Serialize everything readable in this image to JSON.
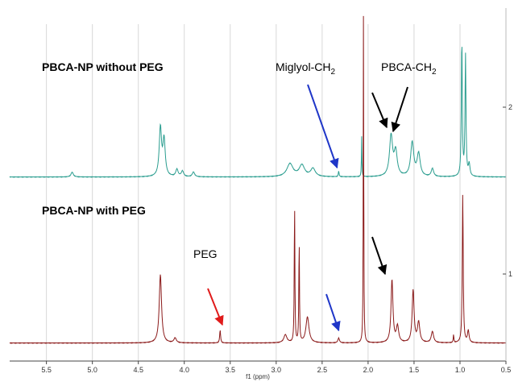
{
  "chart_data": {
    "type": "line",
    "xlabel": "f1 (ppm)",
    "xlim": [
      5.9,
      0.5
    ],
    "x_reversed": true,
    "grid": true,
    "x_ticks": [
      "5.5",
      "5.0",
      "4.5",
      "4.0",
      "3.5",
      "3.0",
      "2.5",
      "2.0",
      "1.5",
      "1.0",
      "0.5"
    ],
    "right_ticks": [
      "2",
      "1"
    ],
    "series": [
      {
        "name": "PBCA-NP without PEG",
        "color": "#2a9d8f",
        "peaks": [
          {
            "ppm": 5.22,
            "height": 6,
            "width": 0.03
          },
          {
            "ppm": 4.26,
            "height": 60,
            "width": 0.03
          },
          {
            "ppm": 4.22,
            "height": 45,
            "width": 0.03
          },
          {
            "ppm": 4.08,
            "height": 9,
            "width": 0.03
          },
          {
            "ppm": 4.02,
            "height": 7,
            "width": 0.03
          },
          {
            "ppm": 3.9,
            "height": 6,
            "width": 0.03
          },
          {
            "ppm": 2.85,
            "height": 16,
            "width": 0.08
          },
          {
            "ppm": 2.72,
            "height": 14,
            "width": 0.07
          },
          {
            "ppm": 2.6,
            "height": 10,
            "width": 0.06
          },
          {
            "ppm": 2.32,
            "height": 7,
            "width": 0.01
          },
          {
            "ppm": 2.07,
            "height": 50,
            "width": 0.006
          },
          {
            "ppm": 1.75,
            "height": 50,
            "width": 0.04
          },
          {
            "ppm": 1.7,
            "height": 30,
            "width": 0.04
          },
          {
            "ppm": 1.52,
            "height": 42,
            "width": 0.04
          },
          {
            "ppm": 1.45,
            "height": 28,
            "width": 0.04
          },
          {
            "ppm": 1.3,
            "height": 10,
            "width": 0.03
          },
          {
            "ppm": 0.98,
            "height": 170,
            "width": 0.012
          },
          {
            "ppm": 0.94,
            "height": 150,
            "width": 0.012
          },
          {
            "ppm": 0.9,
            "height": 15,
            "width": 0.02
          }
        ]
      },
      {
        "name": "PBCA-NP with PEG",
        "color": "#8b1a1a",
        "peaks": [
          {
            "ppm": 4.26,
            "height": 85,
            "width": 0.03
          },
          {
            "ppm": 4.1,
            "height": 6,
            "width": 0.03
          },
          {
            "ppm": 3.61,
            "height": 16,
            "width": 0.012
          },
          {
            "ppm": 2.9,
            "height": 10,
            "width": 0.04
          },
          {
            "ppm": 2.8,
            "height": 175,
            "width": 0.008
          },
          {
            "ppm": 2.75,
            "height": 128,
            "width": 0.008
          },
          {
            "ppm": 2.66,
            "height": 32,
            "width": 0.04
          },
          {
            "ppm": 2.32,
            "height": 6,
            "width": 0.02
          },
          {
            "ppm": 2.05,
            "height": 420,
            "width": 0.006
          },
          {
            "ppm": 1.74,
            "height": 78,
            "width": 0.025
          },
          {
            "ppm": 1.68,
            "height": 20,
            "width": 0.03
          },
          {
            "ppm": 1.51,
            "height": 65,
            "width": 0.025
          },
          {
            "ppm": 1.45,
            "height": 25,
            "width": 0.03
          },
          {
            "ppm": 1.3,
            "height": 14,
            "width": 0.03
          },
          {
            "ppm": 1.07,
            "height": 10,
            "width": 0.008
          },
          {
            "ppm": 0.97,
            "height": 185,
            "width": 0.012
          },
          {
            "ppm": 0.91,
            "height": 15,
            "width": 0.02
          }
        ]
      }
    ],
    "annotations": [
      {
        "text": "PBCA-NP without PEG",
        "style": "bold",
        "arrow": false
      },
      {
        "text": "Miglyol-CH",
        "sub": "2",
        "style": "normal",
        "arrow_color": "#1f36c8",
        "arrow": true,
        "target_ppm": 2.32
      },
      {
        "text": "PBCA-CH",
        "sub": "2",
        "style": "normal",
        "arrow_color": "#000000",
        "arrow": true,
        "target_ppm": 1.75
      },
      {
        "text": "PBCA-NP with PEG",
        "style": "bold",
        "arrow": false
      },
      {
        "text": "PEG",
        "style": "normal",
        "arrow_color": "#e01b1b",
        "arrow": true,
        "target_ppm": 3.61
      }
    ]
  }
}
